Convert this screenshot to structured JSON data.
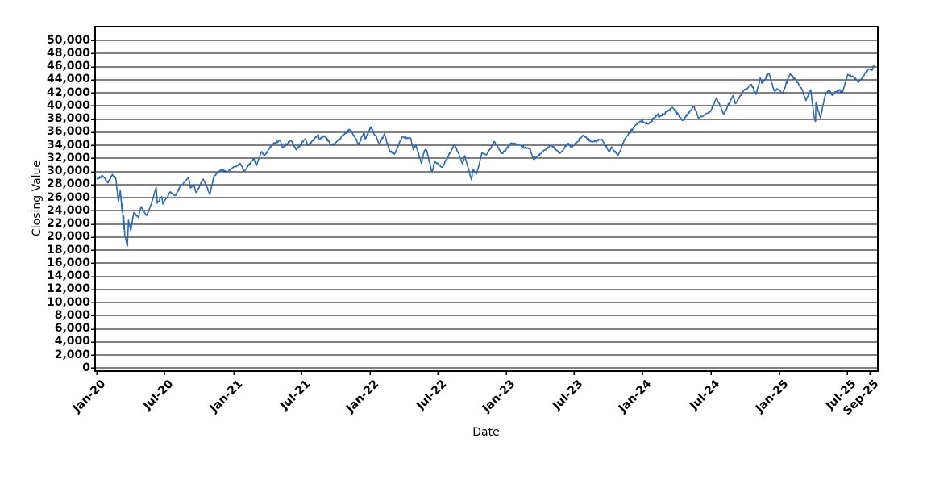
{
  "chart_data": {
    "type": "line",
    "title": "",
    "xlabel": "Date",
    "ylabel": "Closing Value",
    "legend": "none",
    "grid": "horizontal-only",
    "line_color": "#2d69b4",
    "grid_color": "#000000",
    "background_color": "#ffffff",
    "ylim": [
      0,
      50000
    ],
    "y_tick_step": 2000,
    "x_range": [
      "2020-01-01",
      "2025-09-15"
    ],
    "y_ticks": [
      {
        "value": 0,
        "label": "0"
      },
      {
        "value": 2000,
        "label": "2,000"
      },
      {
        "value": 4000,
        "label": "4,000"
      },
      {
        "value": 6000,
        "label": "6,000"
      },
      {
        "value": 8000,
        "label": "8,000"
      },
      {
        "value": 10000,
        "label": "10,000"
      },
      {
        "value": 12000,
        "label": "12,000"
      },
      {
        "value": 14000,
        "label": "14,000"
      },
      {
        "value": 16000,
        "label": "16,000"
      },
      {
        "value": 18000,
        "label": "18,000"
      },
      {
        "value": 20000,
        "label": "20,000"
      },
      {
        "value": 22000,
        "label": "22,000"
      },
      {
        "value": 24000,
        "label": "24,000"
      },
      {
        "value": 26000,
        "label": "26,000"
      },
      {
        "value": 28000,
        "label": "28,000"
      },
      {
        "value": 30000,
        "label": "30,000"
      },
      {
        "value": 32000,
        "label": "32,000"
      },
      {
        "value": 34000,
        "label": "34,000"
      },
      {
        "value": 36000,
        "label": "36,000"
      },
      {
        "value": 38000,
        "label": "38,000"
      },
      {
        "value": 40000,
        "label": "40,000"
      },
      {
        "value": 42000,
        "label": "42,000"
      },
      {
        "value": 44000,
        "label": "44,000"
      },
      {
        "value": 46000,
        "label": "46,000"
      },
      {
        "value": 48000,
        "label": "48,000"
      },
      {
        "value": 50000,
        "label": "50,000"
      }
    ],
    "x_ticks": [
      {
        "label": "Jan-20",
        "date": "2020-01-01"
      },
      {
        "label": "Jul-20",
        "date": "2020-07-01"
      },
      {
        "label": "Jan-21",
        "date": "2021-01-01"
      },
      {
        "label": "Jul-21",
        "date": "2021-07-01"
      },
      {
        "label": "Jan-22",
        "date": "2022-01-01"
      },
      {
        "label": "Jul-22",
        "date": "2022-07-01"
      },
      {
        "label": "Jan-23",
        "date": "2023-01-01"
      },
      {
        "label": "Jul-23",
        "date": "2023-07-01"
      },
      {
        "label": "Jan-24",
        "date": "2024-01-01"
      },
      {
        "label": "Jul-24",
        "date": "2024-07-01"
      },
      {
        "label": "Jan-25",
        "date": "2025-01-01"
      },
      {
        "label": "Jul-25",
        "date": "2025-07-01"
      },
      {
        "label": "Sep-25",
        "date": "2025-09-01"
      }
    ],
    "series": [
      {
        "name": "Closing Value",
        "points": [
          [
            "2020-01-02",
            28869
          ],
          [
            "2020-01-17",
            29348
          ],
          [
            "2020-01-31",
            28256
          ],
          [
            "2020-02-12",
            29551
          ],
          [
            "2020-02-21",
            28992
          ],
          [
            "2020-02-28",
            25409
          ],
          [
            "2020-03-04",
            27091
          ],
          [
            "2020-03-09",
            23851
          ],
          [
            "2020-03-10",
            25018
          ],
          [
            "2020-03-12",
            21201
          ],
          [
            "2020-03-13",
            23186
          ],
          [
            "2020-03-16",
            20188
          ],
          [
            "2020-03-18",
            19899
          ],
          [
            "2020-03-23",
            18592
          ],
          [
            "2020-03-26",
            22552
          ],
          [
            "2020-04-01",
            20944
          ],
          [
            "2020-04-09",
            23719
          ],
          [
            "2020-04-21",
            23018
          ],
          [
            "2020-04-29",
            24634
          ],
          [
            "2020-05-13",
            23248
          ],
          [
            "2020-05-26",
            24995
          ],
          [
            "2020-06-08",
            27572
          ],
          [
            "2020-06-11",
            25128
          ],
          [
            "2020-06-23",
            26156
          ],
          [
            "2020-06-26",
            25016
          ],
          [
            "2020-07-15",
            26870
          ],
          [
            "2020-07-30",
            26313
          ],
          [
            "2020-08-11",
            27687
          ],
          [
            "2020-08-28",
            28654
          ],
          [
            "2020-09-02",
            29100
          ],
          [
            "2020-09-08",
            27500
          ],
          [
            "2020-09-16",
            28032
          ],
          [
            "2020-09-23",
            26763
          ],
          [
            "2020-10-12",
            28838
          ],
          [
            "2020-10-30",
            26502
          ],
          [
            "2020-11-09",
            29158
          ],
          [
            "2020-11-24",
            30046
          ],
          [
            "2020-12-04",
            30218
          ],
          [
            "2020-12-14",
            29861
          ],
          [
            "2020-12-31",
            30606
          ],
          [
            "2021-01-20",
            31188
          ],
          [
            "2021-01-29",
            29983
          ],
          [
            "2021-02-24",
            31962
          ],
          [
            "2021-03-04",
            30924
          ],
          [
            "2021-03-17",
            33015
          ],
          [
            "2021-03-25",
            32420
          ],
          [
            "2021-04-16",
            34201
          ],
          [
            "2021-05-07",
            34778
          ],
          [
            "2021-05-12",
            33588
          ],
          [
            "2021-06-04",
            34756
          ],
          [
            "2021-06-18",
            33290
          ],
          [
            "2021-07-12",
            34996
          ],
          [
            "2021-07-19",
            33962
          ],
          [
            "2021-08-16",
            35625
          ],
          [
            "2021-08-19",
            34894
          ],
          [
            "2021-09-02",
            35444
          ],
          [
            "2021-09-20",
            33970
          ],
          [
            "2021-10-01",
            34326
          ],
          [
            "2021-10-26",
            35757
          ],
          [
            "2021-11-08",
            36432
          ],
          [
            "2021-11-26",
            34899
          ],
          [
            "2021-12-01",
            34022
          ],
          [
            "2021-12-16",
            35898
          ],
          [
            "2021-12-20",
            34932
          ],
          [
            "2021-12-31",
            36338
          ],
          [
            "2022-01-04",
            36800
          ],
          [
            "2022-01-27",
            34160
          ],
          [
            "2022-02-09",
            35768
          ],
          [
            "2022-02-23",
            33131
          ],
          [
            "2022-03-08",
            32633
          ],
          [
            "2022-03-29",
            35294
          ],
          [
            "2022-04-20",
            35110
          ],
          [
            "2022-04-27",
            33302
          ],
          [
            "2022-05-04",
            34061
          ],
          [
            "2022-05-19",
            31253
          ],
          [
            "2022-05-27",
            33213
          ],
          [
            "2022-06-02",
            33248
          ],
          [
            "2022-06-16",
            29927
          ],
          [
            "2022-06-24",
            31500
          ],
          [
            "2022-07-14",
            30630
          ],
          [
            "2022-08-16",
            34152
          ],
          [
            "2022-09-06",
            31145
          ],
          [
            "2022-09-12",
            32381
          ],
          [
            "2022-09-30",
            28725
          ],
          [
            "2022-10-04",
            30316
          ],
          [
            "2022-10-14",
            29634
          ],
          [
            "2022-10-28",
            32861
          ],
          [
            "2022-11-09",
            32513
          ],
          [
            "2022-11-30",
            34589
          ],
          [
            "2022-12-19",
            32757
          ],
          [
            "2022-12-30",
            33147
          ],
          [
            "2023-01-13",
            34302
          ],
          [
            "2023-02-02",
            34053
          ],
          [
            "2023-03-06",
            33431
          ],
          [
            "2023-03-15",
            31874
          ],
          [
            "2023-03-24",
            32237
          ],
          [
            "2023-05-01",
            34051
          ],
          [
            "2023-05-25",
            32764
          ],
          [
            "2023-06-16",
            34299
          ],
          [
            "2023-06-26",
            33714
          ],
          [
            "2023-07-26",
            35520
          ],
          [
            "2023-08-18",
            34501
          ],
          [
            "2023-09-14",
            34907
          ],
          [
            "2023-10-03",
            33002
          ],
          [
            "2023-10-10",
            33739
          ],
          [
            "2023-10-27",
            32417
          ],
          [
            "2023-11-15",
            34991
          ],
          [
            "2023-12-13",
            37090
          ],
          [
            "2023-12-28",
            37710
          ],
          [
            "2024-01-05",
            37466
          ],
          [
            "2024-01-17",
            37267
          ],
          [
            "2024-02-12",
            38797
          ],
          [
            "2024-02-13",
            38272
          ],
          [
            "2024-03-21",
            39781
          ],
          [
            "2024-04-17",
            37753
          ],
          [
            "2024-05-17",
            40003
          ],
          [
            "2024-05-30",
            38111
          ],
          [
            "2024-06-14",
            38589
          ],
          [
            "2024-07-01",
            39169
          ],
          [
            "2024-07-17",
            41198
          ],
          [
            "2024-08-05",
            38703
          ],
          [
            "2024-08-30",
            41563
          ],
          [
            "2024-09-06",
            40345
          ],
          [
            "2024-09-27",
            42313
          ],
          [
            "2024-10-18",
            43275
          ],
          [
            "2024-10-31",
            41763
          ],
          [
            "2024-11-11",
            44293
          ],
          [
            "2024-11-15",
            43444
          ],
          [
            "2024-12-04",
            45014
          ],
          [
            "2024-12-18",
            42327
          ],
          [
            "2024-12-31",
            42544
          ],
          [
            "2025-01-10",
            41938
          ],
          [
            "2025-01-30",
            44882
          ],
          [
            "2025-02-21",
            43428
          ],
          [
            "2025-03-03",
            42521
          ],
          [
            "2025-03-13",
            40814
          ],
          [
            "2025-03-26",
            42455
          ],
          [
            "2025-04-04",
            38315
          ],
          [
            "2025-04-08",
            37646
          ],
          [
            "2025-04-09",
            40608
          ],
          [
            "2025-04-21",
            38170
          ],
          [
            "2025-05-02",
            41317
          ],
          [
            "2025-05-12",
            42410
          ],
          [
            "2025-05-23",
            41603
          ],
          [
            "2025-06-05",
            42320
          ],
          [
            "2025-06-20",
            42207
          ],
          [
            "2025-07-03",
            44828
          ],
          [
            "2025-07-17",
            44484
          ],
          [
            "2025-08-01",
            43589
          ],
          [
            "2025-08-12",
            44458
          ],
          [
            "2025-08-28",
            45637
          ],
          [
            "2025-09-05",
            45400
          ],
          [
            "2025-09-11",
            46108
          ]
        ]
      }
    ]
  }
}
